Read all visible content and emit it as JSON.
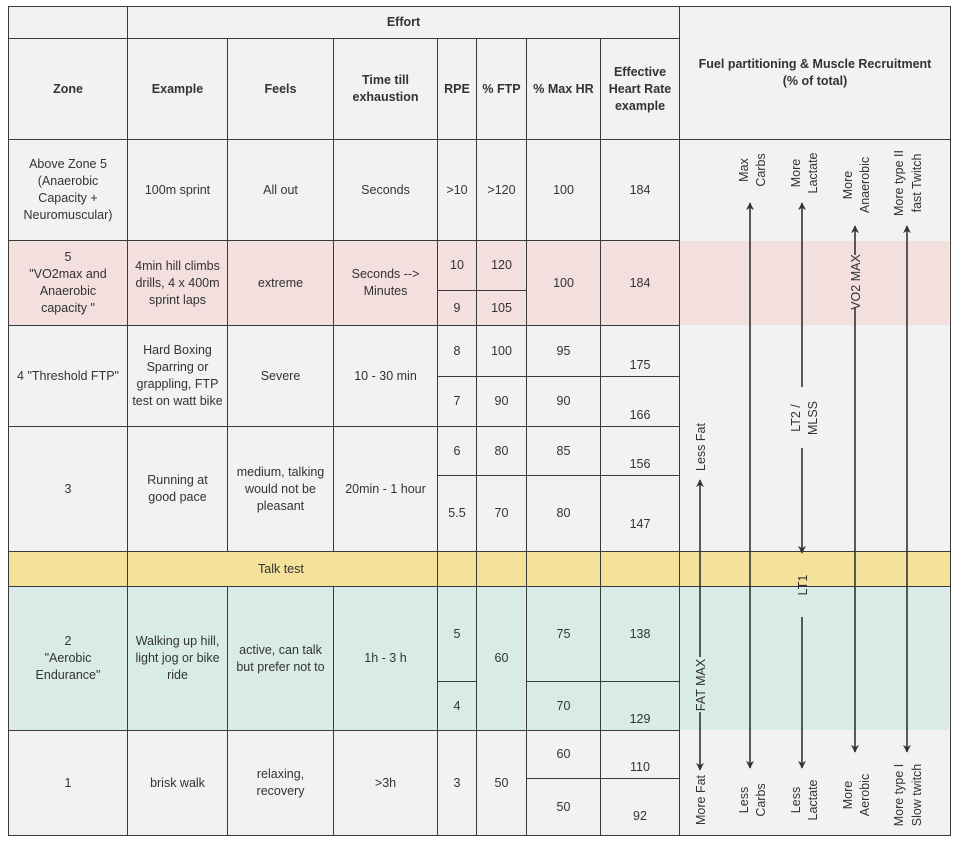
{
  "header": {
    "effort": "Effort",
    "fuel": "Fuel partitioning & Muscle Recruitment\n(% of total)",
    "columns": [
      "Zone",
      "Example",
      "Feels",
      "Time till exhaustion",
      "RPE",
      "% FTP",
      "% Max HR",
      "Effective Heart Rate example"
    ]
  },
  "rows": [
    {
      "zone": "Above Zone 5\n(Anaerobic\nCapacity +\nNeuromuscular)",
      "example": "100m sprint",
      "feels": "All out",
      "time": "Seconds",
      "rpe": [
        ">10"
      ],
      "ftp": [
        ">120"
      ],
      "maxhr": [
        "100"
      ],
      "hr": [
        "184"
      ]
    },
    {
      "zone": "5\n\"VO2max and\nAnaerobic\ncapacity \"",
      "example": "4min hill climbs drills, 4 x 400m sprint laps",
      "feels": "extreme",
      "time": "Seconds -->\nMinutes",
      "rpe": [
        "10",
        "9"
      ],
      "ftp": [
        "120",
        "105"
      ],
      "maxhr": [
        "100"
      ],
      "hr": [
        "184"
      ]
    },
    {
      "zone": "4 \"Threshold FTP\"",
      "example": "Hard Boxing Sparring or grappling, FTP test on watt bike",
      "feels": "Severe",
      "time": "10 - 30 min",
      "rpe": [
        "8",
        "7"
      ],
      "ftp": [
        "100",
        "90"
      ],
      "maxhr": [
        "95",
        "90"
      ],
      "hr": [
        "175",
        "166"
      ]
    },
    {
      "zone": "3",
      "example": "Running at good pace",
      "feels": "medium, talking would not be pleasant",
      "time": "20min - 1 hour",
      "rpe": [
        "6",
        "5.5"
      ],
      "ftp": [
        "80",
        "70"
      ],
      "maxhr": [
        "85",
        "80"
      ],
      "hr": [
        "156",
        "147"
      ]
    },
    {
      "talk_test": "Talk test"
    },
    {
      "zone": "2\n\"Aerobic\nEndurance\"",
      "example": "Walking up hill, light jog or bike ride",
      "feels": "active, can talk but prefer not to",
      "time": "1h - 3 h",
      "rpe": [
        "5",
        "4"
      ],
      "ftp": [
        "60"
      ],
      "maxhr": [
        "75",
        "70"
      ],
      "hr": [
        "138",
        "129"
      ]
    },
    {
      "zone": "1",
      "example": "brisk walk",
      "feels": "relaxing, recovery",
      "time": ">3h",
      "rpe": [
        "3"
      ],
      "ftp": [
        "50"
      ],
      "maxhr": [
        "60",
        "50"
      ],
      "hr": [
        "110",
        "92"
      ]
    }
  ],
  "fuel_panel": {
    "fat": {
      "top": "Less Fat",
      "marker": "FAT MAX",
      "bottom": "More Fat"
    },
    "carbs": {
      "top": [
        "Max",
        "Carbs"
      ],
      "bottom": [
        "Less",
        "Carbs"
      ]
    },
    "lactate": {
      "top": [
        "More",
        "Lactate"
      ],
      "marker1": [
        "LT2 /",
        "MLSS"
      ],
      "marker2": "LT1",
      "bottom": [
        "Less",
        "Lactate"
      ]
    },
    "energy": {
      "top": [
        "More",
        "Anaerobic"
      ],
      "marker": "VO2 MAX",
      "bottom": [
        "More",
        "Aerobic"
      ]
    },
    "fibre": {
      "top": [
        "More type II",
        "fast Twitch"
      ],
      "bottom": [
        "More type I",
        "Slow twitch"
      ]
    }
  },
  "colors": {
    "pink": "#f2dfde",
    "yellow": "#f5e19a",
    "green": "#d9ebe6",
    "cell": "#f2f2f2",
    "line": "#333333"
  }
}
